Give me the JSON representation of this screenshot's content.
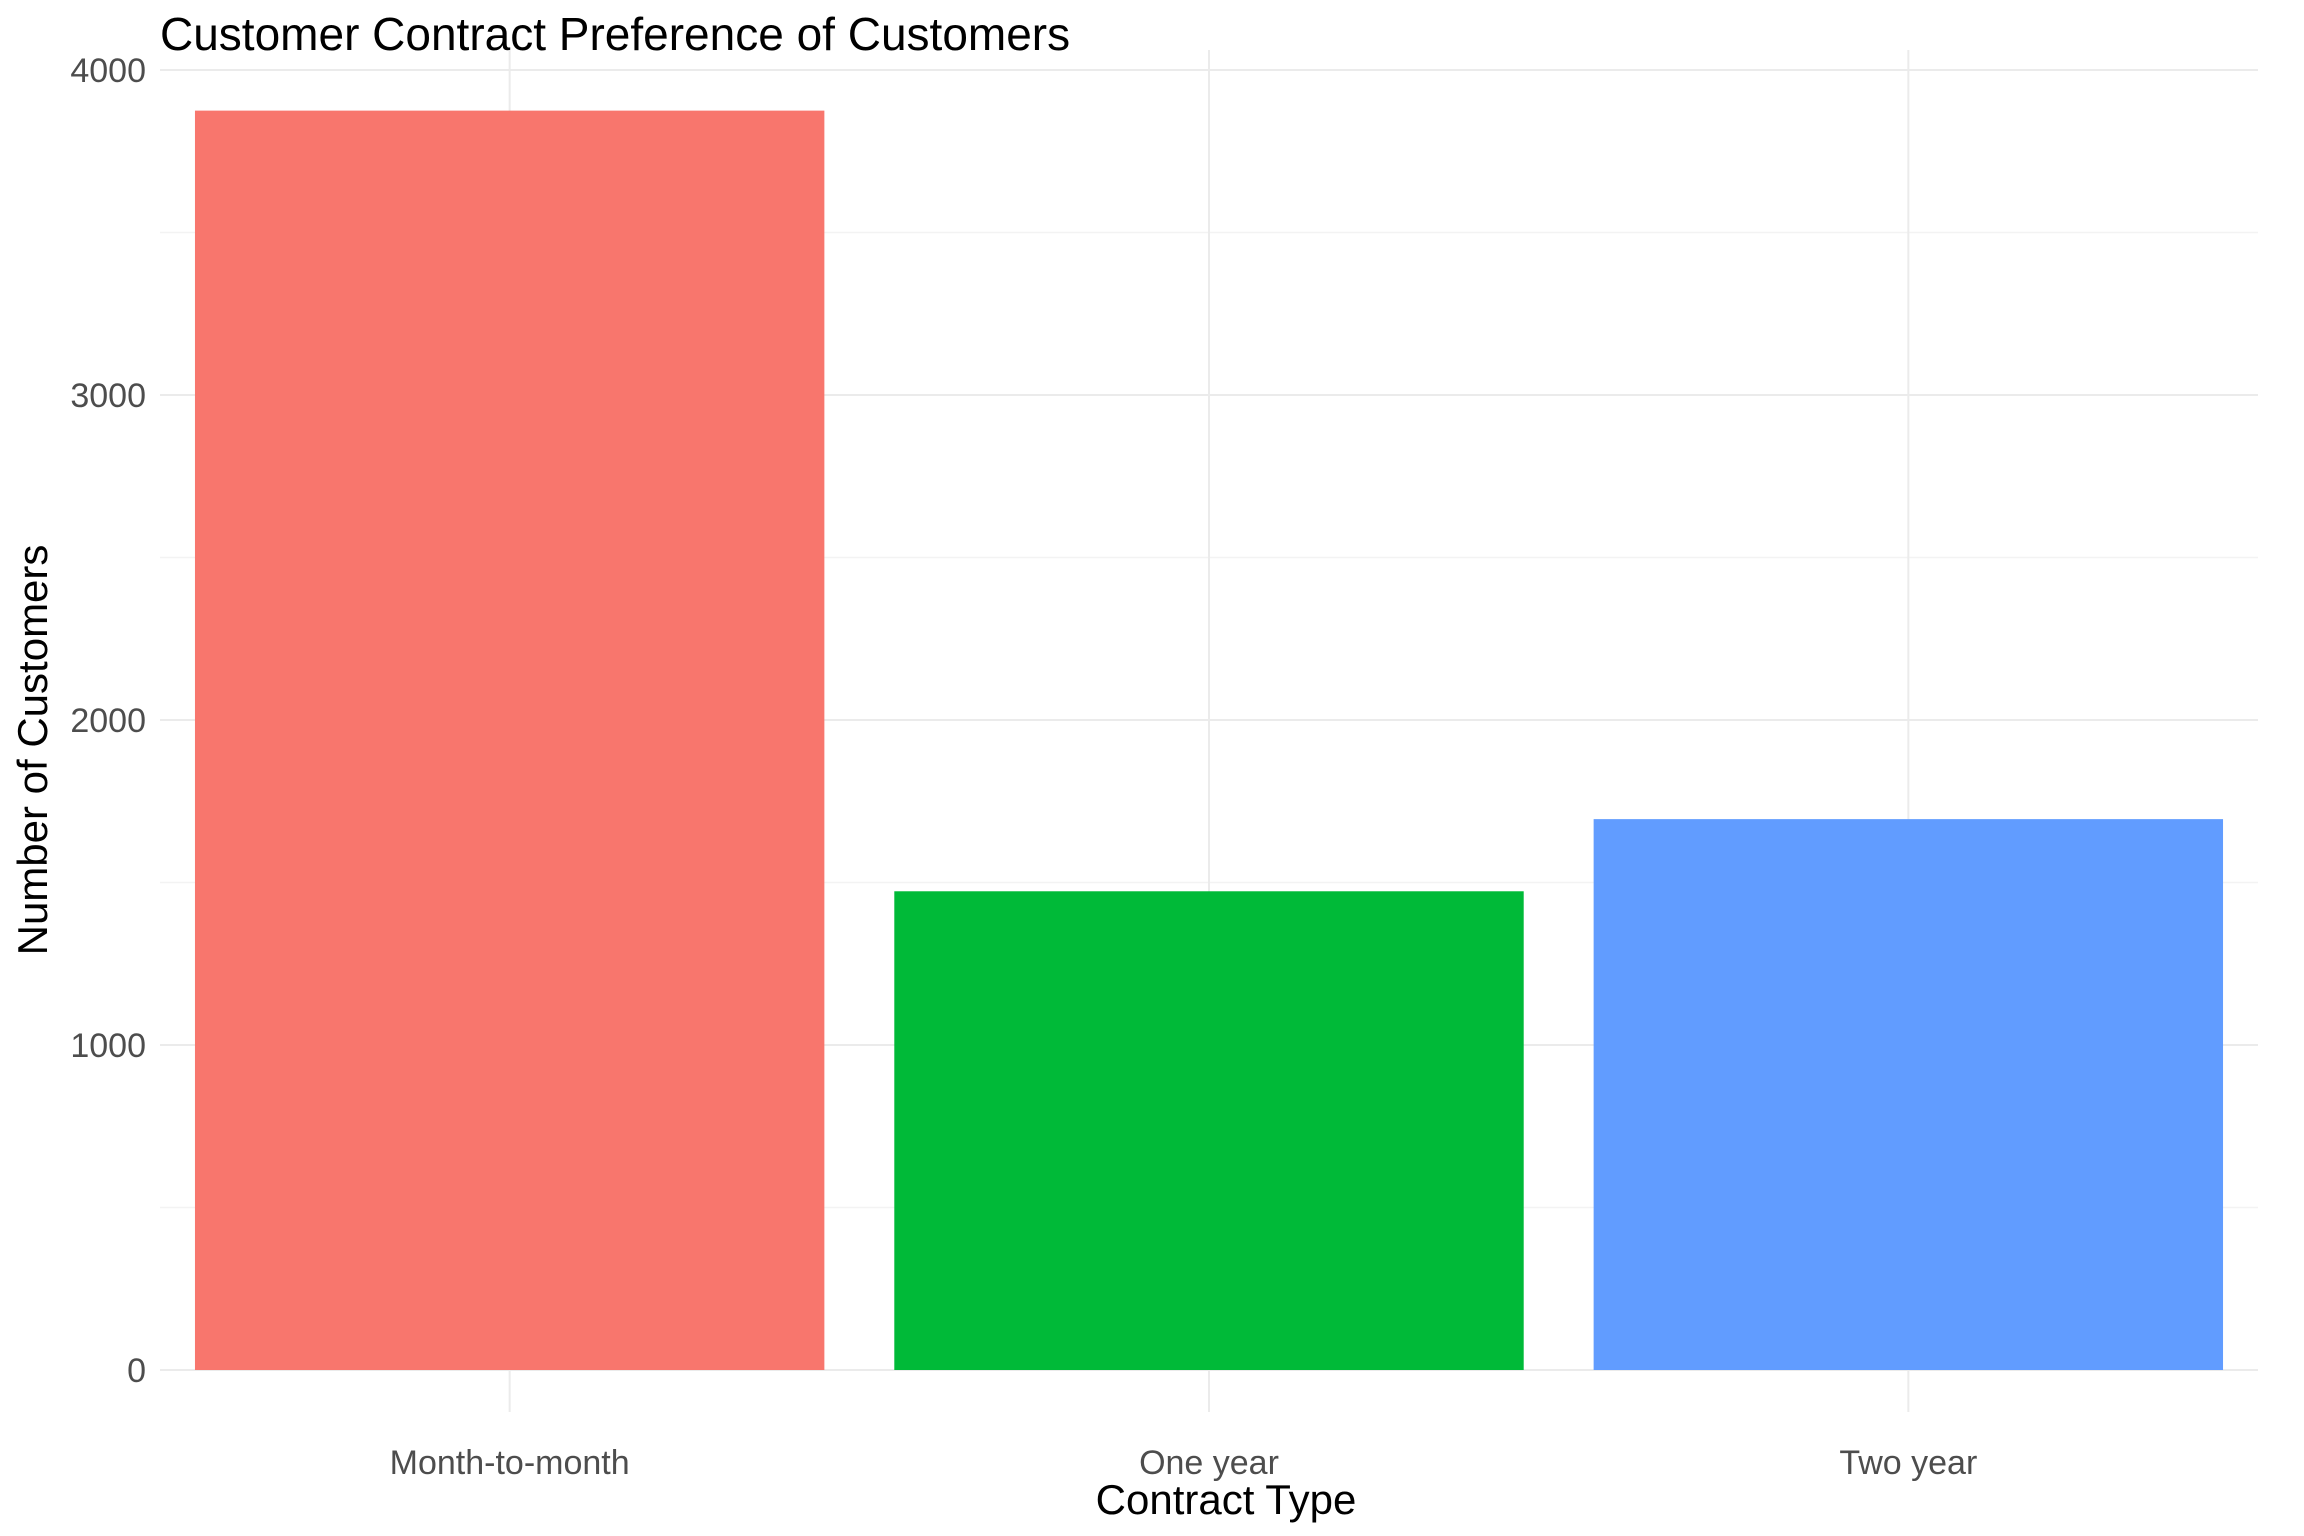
{
  "chart_data": {
    "type": "bar",
    "title": "Customer Contract Preference of Customers",
    "xlabel": "Contract Type",
    "ylabel": "Number of Customers",
    "categories": [
      "Month-to-month",
      "One year",
      "Two year"
    ],
    "values": [
      3875,
      1473,
      1695
    ],
    "colors": [
      "#F8766D",
      "#00BA38",
      "#619CFF"
    ],
    "ylim": [
      0,
      4000
    ],
    "yticks": [
      0,
      1000,
      2000,
      3000,
      4000
    ],
    "ytick_labels": [
      "0",
      "1000",
      "2000",
      "3000",
      "4000"
    ],
    "grid": true,
    "legend": "none"
  }
}
